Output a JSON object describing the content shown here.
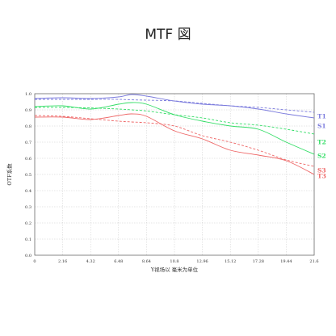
{
  "chart_data": {
    "type": "line",
    "title": "MTF 図",
    "xlabel": "Y视场以 毫米为单位",
    "ylabel": "OTF系数",
    "xlim": [
      0,
      21.6
    ],
    "ylim": [
      0,
      1.0
    ],
    "x_ticks": [
      "0",
      "2.16",
      "4.32",
      "6.48",
      "8.64",
      "10.8",
      "12.96",
      "15.12",
      "17.28",
      "19.44",
      "21.6"
    ],
    "y_ticks": [
      "0.0",
      "0.1",
      "0.2",
      "0.3",
      "0.4",
      "0.5",
      "0.6",
      "0.7",
      "0.8",
      "0.9",
      "1.0"
    ],
    "grid": true,
    "legend_position": "right",
    "x": [
      0,
      2.16,
      4.32,
      6.48,
      7.5,
      8.64,
      10.8,
      12.96,
      15.12,
      17.28,
      19.44,
      21.6
    ],
    "series": [
      {
        "name": "T1",
        "color": "#7b7bdd",
        "dash": false,
        "values": [
          0.97,
          0.975,
          0.97,
          0.98,
          0.995,
          0.985,
          0.955,
          0.935,
          0.925,
          0.905,
          0.875,
          0.85
        ]
      },
      {
        "name": "S1",
        "color": "#7b7bdd",
        "dash": true,
        "values": [
          0.965,
          0.965,
          0.965,
          0.965,
          0.962,
          0.96,
          0.955,
          0.94,
          0.925,
          0.915,
          0.9,
          0.885
        ]
      },
      {
        "name": "T2",
        "color": "#33dd66",
        "dash": false,
        "values": [
          0.92,
          0.925,
          0.905,
          0.935,
          0.945,
          0.935,
          0.87,
          0.83,
          0.8,
          0.78,
          0.7,
          0.625
        ]
      },
      {
        "name": "S2",
        "color": "#33dd66",
        "dash": true,
        "values": [
          0.915,
          0.915,
          0.912,
          0.905,
          0.9,
          0.893,
          0.87,
          0.85,
          0.82,
          0.805,
          0.78,
          0.75
        ]
      },
      {
        "name": "S3",
        "color": "#ee6666",
        "dash": true,
        "values": [
          0.865,
          0.86,
          0.845,
          0.83,
          0.825,
          0.82,
          0.8,
          0.74,
          0.7,
          0.65,
          0.59,
          0.55
        ]
      },
      {
        "name": "T3",
        "color": "#ee6666",
        "dash": false,
        "values": [
          0.855,
          0.855,
          0.84,
          0.865,
          0.875,
          0.86,
          0.77,
          0.72,
          0.65,
          0.62,
          0.585,
          0.5
        ]
      }
    ],
    "legend_labels": [
      {
        "name": "T1",
        "value": 0.86,
        "color": "#7b7bdd"
      },
      {
        "name": "S1",
        "value": 0.8,
        "color": "#7b7bdd"
      },
      {
        "name": "T2",
        "value": 0.7,
        "color": "#33dd66"
      },
      {
        "name": "S2",
        "value": 0.615,
        "color": "#33dd66"
      },
      {
        "name": "S3",
        "value": 0.525,
        "color": "#ee6666"
      },
      {
        "name": "T3",
        "value": 0.49,
        "color": "#ee6666"
      }
    ]
  }
}
